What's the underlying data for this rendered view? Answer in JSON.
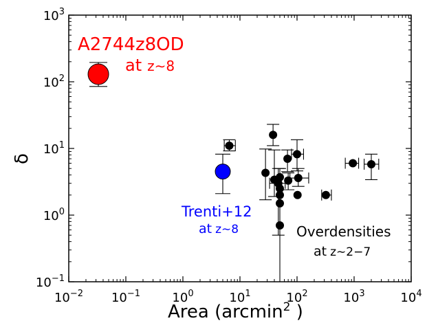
{
  "chart_data": {
    "type": "scatter",
    "xscale": "log",
    "yscale": "log",
    "xlim": [
      0.01,
      10000
    ],
    "ylim": [
      0.1,
      1000
    ],
    "xlabel_main": "Area (arcmin",
    "xlabel_sup": "2",
    "xlabel_end": " )",
    "ylabel": "δ",
    "x_ticks": [
      {
        "base": "10",
        "exp": "−2",
        "value": 0.01
      },
      {
        "base": "10",
        "exp": "−1",
        "value": 0.1
      },
      {
        "base": "10",
        "exp": "0",
        "value": 1
      },
      {
        "base": "10",
        "exp": "1",
        "value": 10
      },
      {
        "base": "10",
        "exp": "2",
        "value": 100
      },
      {
        "base": "10",
        "exp": "3",
        "value": 1000
      },
      {
        "base": "10",
        "exp": "4",
        "value": 10000
      }
    ],
    "y_ticks": [
      {
        "base": "10",
        "exp": "−1",
        "value": 0.1
      },
      {
        "base": "10",
        "exp": "0",
        "value": 1
      },
      {
        "base": "10",
        "exp": "1",
        "value": 10
      },
      {
        "base": "10",
        "exp": "2",
        "value": 100
      },
      {
        "base": "10",
        "exp": "3",
        "value": 1000
      }
    ],
    "series": [
      {
        "color": "#ff0000",
        "points": [
          {
            "x": 0.033,
            "y": 130,
            "ylo": 85,
            "yhi": 195
          }
        ]
      },
      {
        "color": "#0000ff",
        "points": [
          {
            "x": 5.0,
            "y": 4.5,
            "ylo": 2.1,
            "yhi": 8.2
          }
        ]
      },
      {
        "color": "#000000",
        "points": [
          {
            "x": 6.5,
            "y": 11,
            "ylo": 9.2,
            "yhi": 13.5,
            "xlo": 5.3,
            "xhi": 8.3
          },
          {
            "x": 28,
            "y": 4.3,
            "ylo": 1.7,
            "yhi": 9.8
          },
          {
            "x": 38,
            "y": 16,
            "ylo": 11,
            "yhi": 23
          },
          {
            "x": 40,
            "y": 3.4,
            "ylo": 1.9,
            "yhi": 9.5
          },
          {
            "x": 47,
            "y": 3.0,
            "ylo": 0.5,
            "yhi": 5.0,
            "xlo": 33,
            "xhi": 62
          },
          {
            "x": 50,
            "y": 3.7,
            "ylo": 0.1,
            "yhi": 5.0
          },
          {
            "x": 50,
            "y": 2.5
          },
          {
            "x": 50,
            "y": 2.0
          },
          {
            "x": 50,
            "y": 1.5
          },
          {
            "x": 50,
            "y": 0.7
          },
          {
            "x": 68,
            "y": 7.0,
            "ylo": 4.5,
            "yhi": 9.5
          },
          {
            "x": 70,
            "y": 3.3,
            "ylo": 2.4,
            "yhi": 4.3
          },
          {
            "x": 100,
            "y": 8.2,
            "ylo": 4.6,
            "yhi": 13.5,
            "xlo": 80,
            "xhi": 130
          },
          {
            "x": 105,
            "y": 3.6,
            "ylo": 2.7,
            "yhi": 5.0,
            "xlo": 75,
            "xhi": 160
          },
          {
            "x": 102,
            "y": 2.0
          },
          {
            "x": 320,
            "y": 2.0,
            "xlo": 270,
            "xhi": 400
          },
          {
            "x": 950,
            "y": 6.0,
            "xlo": 700,
            "xhi": 1200
          },
          {
            "x": 2000,
            "y": 5.8,
            "ylo": 3.4,
            "yhi": 8.2,
            "xlo": 1500,
            "xhi": 2700
          }
        ]
      }
    ]
  },
  "annotations": {
    "red_label": "A2744z8OD",
    "red_sub_at": "at",
    "red_sub_z": "z∼8",
    "blue_label": "Trenti+12",
    "blue_sub_at": "at",
    "blue_sub_z": "z∼8",
    "black_label": "Overdensities",
    "black_sub_at": "at",
    "black_sub_z": "z∼2−7",
    "red_color": "#ff0000",
    "blue_color": "#0000ff",
    "black_color": "#000000"
  }
}
